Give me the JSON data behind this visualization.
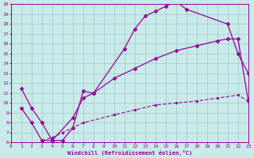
{
  "xlabel": "Windchill (Refroidissement éolien,°C)",
  "bg_color": "#c8eae8",
  "line_color": "#990099",
  "grid_color": "#a0c8c8",
  "xmin": 0,
  "xmax": 23,
  "ymin": 6,
  "ymax": 20,
  "curve_a_x": [
    1,
    2,
    3,
    4,
    5,
    6,
    7,
    8,
    11,
    12,
    13,
    14,
    15,
    16,
    17,
    21,
    22,
    23
  ],
  "curve_a_y": [
    11.5,
    9.5,
    8.0,
    6.2,
    6.2,
    7.5,
    11.2,
    11.0,
    15.5,
    17.5,
    18.8,
    19.3,
    19.8,
    20.3,
    19.5,
    18.0,
    15.0,
    13.0
  ],
  "curve_b_x": [
    1,
    2,
    3,
    4,
    6,
    7,
    8,
    10,
    12,
    14,
    16,
    18,
    20,
    21,
    22,
    23
  ],
  "curve_b_y": [
    9.5,
    8.0,
    6.2,
    6.2,
    8.5,
    10.5,
    11.0,
    12.5,
    13.5,
    14.5,
    15.3,
    15.8,
    16.3,
    16.5,
    16.5,
    10.2
  ],
  "curve_c_x": [
    3,
    4,
    5,
    6,
    7,
    10,
    12,
    14,
    16,
    18,
    20,
    22,
    23
  ],
  "curve_c_y": [
    6.2,
    6.5,
    7.0,
    7.5,
    8.0,
    8.8,
    9.3,
    9.8,
    10.0,
    10.2,
    10.5,
    10.8,
    10.2
  ],
  "yticks": [
    6,
    7,
    8,
    9,
    10,
    11,
    12,
    13,
    14,
    15,
    16,
    17,
    18,
    19,
    20
  ],
  "xticks": [
    0,
    1,
    2,
    3,
    4,
    5,
    6,
    7,
    8,
    9,
    10,
    11,
    12,
    13,
    14,
    15,
    16,
    17,
    18,
    19,
    20,
    21,
    22,
    23
  ]
}
